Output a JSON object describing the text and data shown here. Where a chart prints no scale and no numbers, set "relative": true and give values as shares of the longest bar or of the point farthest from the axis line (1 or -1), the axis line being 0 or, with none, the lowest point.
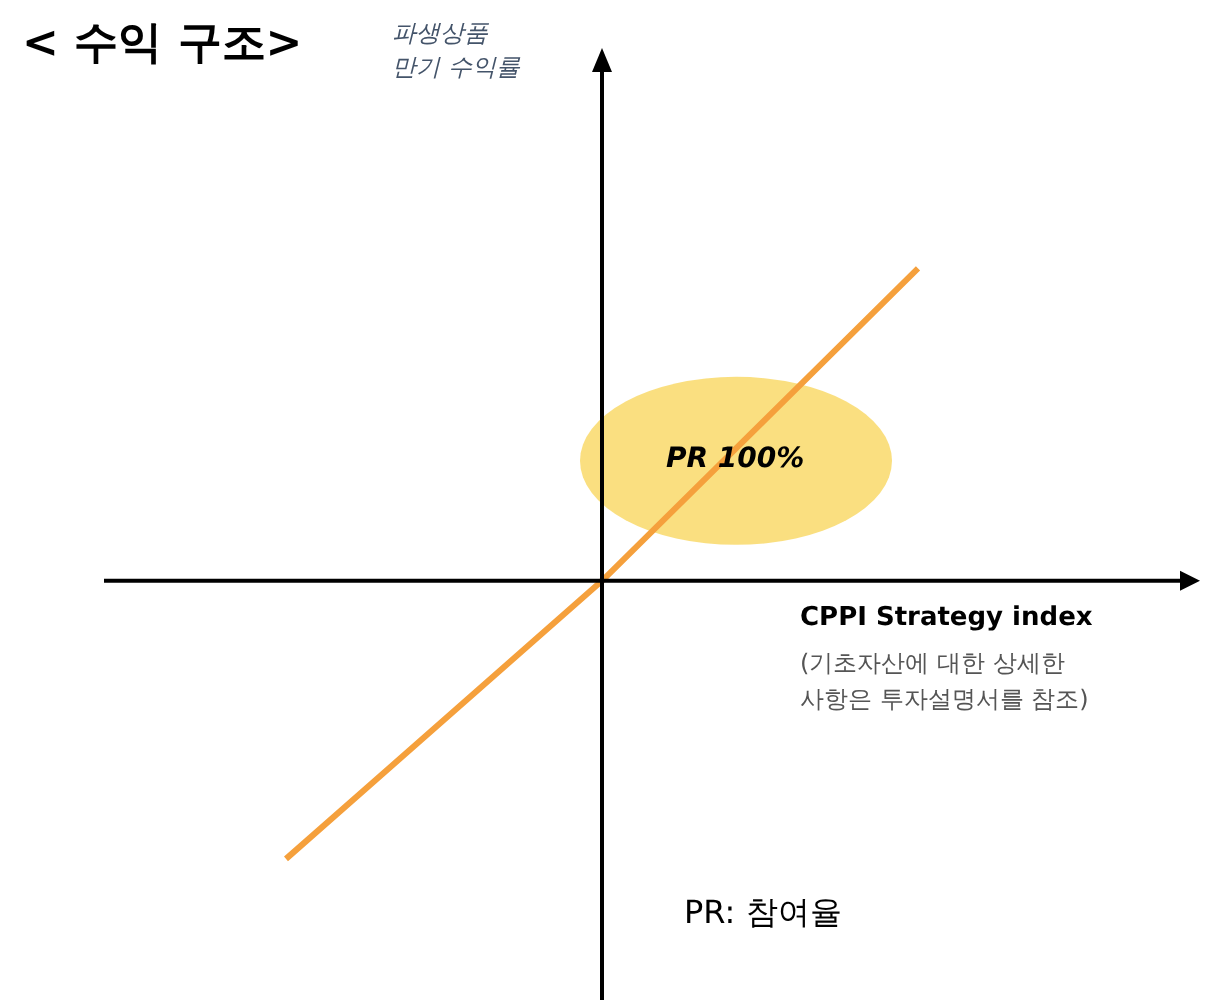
{
  "chart_data": {
    "type": "line",
    "relative": true,
    "title": "< 수익 구조>",
    "xlabel": "CPPI Strategy index",
    "categories": [
      null,
      null,
      null
    ],
    "series": [
      {
        "color": "#f5a03c",
        "values": [
          -0.89,
          0,
          1
        ]
      }
    ],
    "marker": "none",
    "line_style": "solid",
    "annotations": [
      "파생상품\n만기 수익률",
      "(기초자산에 대한 상세한\n사항은 투자설명서를 참조)",
      "PR 100%",
      "PR: 참여율"
    ]
  }
}
